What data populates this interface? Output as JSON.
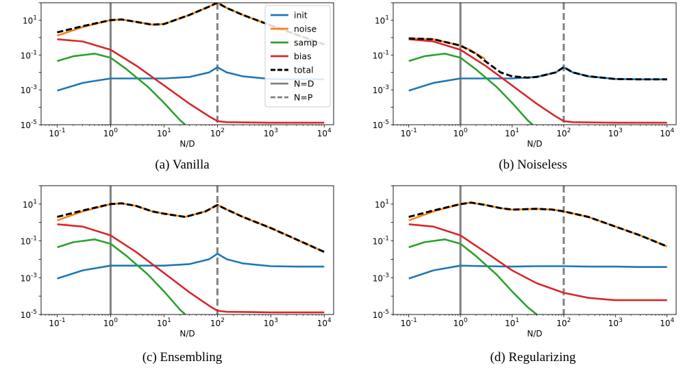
{
  "legend": {
    "items": [
      {
        "label": "init",
        "color": "#1f77b4",
        "dash": "solid"
      },
      {
        "label": "noise",
        "color": "#ff7f0e",
        "dash": "solid"
      },
      {
        "label": "samp",
        "color": "#2ca02c",
        "dash": "solid"
      },
      {
        "label": "bias",
        "color": "#d62728",
        "dash": "solid"
      },
      {
        "label": "total",
        "color": "#000000",
        "dash": "dashed"
      },
      {
        "label": "N=D",
        "color": "#808080",
        "dash": "solid"
      },
      {
        "label": "N=P",
        "color": "#808080",
        "dash": "dashed"
      }
    ]
  },
  "chart_data": [
    {
      "type": "line",
      "caption": "(a) Vanilla",
      "xlabel": "N/D",
      "xscale": "log",
      "yscale": "log",
      "xlim": [
        0.05,
        15000
      ],
      "ylim": [
        1e-05,
        100
      ],
      "xticks": [
        "10^-1",
        "10^0",
        "10^1",
        "10^2",
        "10^3",
        "10^4"
      ],
      "yticks": [
        "10^1",
        "10^-1",
        "10^-3",
        "10^-5"
      ],
      "legend_position": "upper-right",
      "vlines": [
        {
          "x": 1,
          "style": "solid"
        },
        {
          "x": 100,
          "style": "dashed"
        }
      ],
      "series": [
        {
          "name": "init",
          "x": [
            0.1,
            0.3,
            1,
            3,
            10,
            30,
            70,
            100,
            150,
            300,
            1000,
            3000,
            10000
          ],
          "y": [
            0.0009,
            0.0025,
            0.0045,
            0.0045,
            0.0045,
            0.0055,
            0.01,
            0.02,
            0.01,
            0.006,
            0.0042,
            0.004,
            0.004
          ]
        },
        {
          "name": "noise",
          "x": [
            0.1,
            0.3,
            1,
            1.6,
            3,
            6,
            10,
            30,
            70,
            100,
            150,
            300,
            1000,
            3000,
            10000
          ],
          "y": [
            1.3,
            4,
            10,
            11,
            8,
            5.5,
            6,
            20,
            60,
            100,
            50,
            20,
            5,
            1.5,
            0.4
          ]
        },
        {
          "name": "samp",
          "x": [
            0.1,
            0.2,
            0.5,
            1,
            2,
            5,
            10,
            20,
            25
          ],
          "y": [
            0.045,
            0.085,
            0.12,
            0.07,
            0.015,
            0.0015,
            0.00018,
            1.8e-05,
            1e-05
          ]
        },
        {
          "name": "bias",
          "x": [
            0.1,
            0.3,
            1,
            3,
            10,
            30,
            70,
            100,
            150,
            1000,
            10000
          ],
          "y": [
            0.8,
            0.6,
            0.2,
            0.025,
            0.0018,
            0.00016,
            3e-05,
            1.6e-05,
            1.4e-05,
            1.3e-05,
            1.3e-05
          ]
        },
        {
          "name": "total",
          "x": [
            0.1,
            0.3,
            1,
            1.6,
            3,
            6,
            10,
            30,
            70,
            100,
            150,
            300,
            1000,
            3000,
            10000
          ],
          "y": [
            2,
            4.5,
            10,
            11,
            8,
            5.5,
            6,
            20,
            60,
            100,
            50,
            20,
            5,
            1.5,
            0.4
          ]
        }
      ]
    },
    {
      "type": "line",
      "caption": "(b) Noiseless",
      "xlabel": "N/D",
      "xscale": "log",
      "yscale": "log",
      "xlim": [
        0.05,
        15000
      ],
      "ylim": [
        1e-05,
        100
      ],
      "xticks": [
        "10^-1",
        "10^0",
        "10^1",
        "10^2",
        "10^3",
        "10^4"
      ],
      "yticks": [
        "10^1",
        "10^-1",
        "10^-3",
        "10^-5"
      ],
      "vlines": [
        {
          "x": 1,
          "style": "solid"
        },
        {
          "x": 100,
          "style": "dashed"
        }
      ],
      "series": [
        {
          "name": "init",
          "x": [
            0.1,
            0.3,
            1,
            3,
            10,
            30,
            70,
            100,
            150,
            300,
            1000,
            3000,
            10000
          ],
          "y": [
            0.0009,
            0.0025,
            0.0045,
            0.0045,
            0.0045,
            0.0055,
            0.01,
            0.02,
            0.01,
            0.006,
            0.0042,
            0.004,
            0.004
          ]
        },
        {
          "name": "noise",
          "x": [
            0.1,
            0.3,
            1,
            1.5,
            3
          ],
          "y": [
            0.9,
            0.8,
            0.35,
            0.2,
            0.06
          ]
        },
        {
          "name": "samp",
          "x": [
            0.1,
            0.2,
            0.5,
            1,
            2,
            5,
            10,
            20,
            25
          ],
          "y": [
            0.045,
            0.085,
            0.12,
            0.07,
            0.015,
            0.0015,
            0.00018,
            1.8e-05,
            1e-05
          ]
        },
        {
          "name": "bias",
          "x": [
            0.1,
            0.3,
            1,
            3,
            10,
            30,
            70,
            100,
            150,
            1000,
            10000
          ],
          "y": [
            0.8,
            0.6,
            0.2,
            0.025,
            0.0018,
            0.00016,
            3e-05,
            1.6e-05,
            1.4e-05,
            1.3e-05,
            1.3e-05
          ]
        },
        {
          "name": "total",
          "x": [
            0.1,
            0.3,
            1,
            2,
            3,
            6,
            10,
            20,
            30,
            70,
            100,
            150,
            300,
            1000,
            3000,
            10000
          ],
          "y": [
            0.9,
            0.8,
            0.35,
            0.12,
            0.045,
            0.01,
            0.006,
            0.005,
            0.0055,
            0.01,
            0.02,
            0.01,
            0.006,
            0.0042,
            0.004,
            0.004
          ]
        }
      ]
    },
    {
      "type": "line",
      "caption": "(c) Ensembling",
      "xlabel": "N/D",
      "xscale": "log",
      "yscale": "log",
      "xlim": [
        0.05,
        15000
      ],
      "ylim": [
        1e-05,
        100
      ],
      "xticks": [
        "10^-1",
        "10^0",
        "10^1",
        "10^2",
        "10^3",
        "10^4"
      ],
      "yticks": [
        "10^1",
        "10^-1",
        "10^-3",
        "10^-5"
      ],
      "vlines": [
        {
          "x": 1,
          "style": "solid"
        },
        {
          "x": 100,
          "style": "dashed"
        }
      ],
      "series": [
        {
          "name": "init",
          "x": [
            0.1,
            0.3,
            1,
            3,
            10,
            30,
            70,
            100,
            150,
            300,
            1000,
            3000,
            10000
          ],
          "y": [
            0.0009,
            0.0025,
            0.0045,
            0.0045,
            0.0045,
            0.0055,
            0.01,
            0.02,
            0.01,
            0.006,
            0.0042,
            0.004,
            0.004
          ]
        },
        {
          "name": "noise",
          "x": [
            0.1,
            0.3,
            1,
            1.6,
            3,
            6,
            10,
            25,
            60,
            100,
            150,
            300,
            1000,
            3000,
            10000
          ],
          "y": [
            1.3,
            4,
            10,
            11,
            8,
            4,
            3,
            2,
            4,
            9,
            5,
            2,
            0.5,
            0.12,
            0.025
          ]
        },
        {
          "name": "samp",
          "x": [
            0.1,
            0.2,
            0.5,
            1,
            2,
            5,
            10,
            20,
            25
          ],
          "y": [
            0.045,
            0.085,
            0.12,
            0.07,
            0.015,
            0.0015,
            0.00018,
            1.8e-05,
            1e-05
          ]
        },
        {
          "name": "bias",
          "x": [
            0.1,
            0.3,
            1,
            3,
            10,
            30,
            70,
            100,
            150,
            1000,
            10000
          ],
          "y": [
            0.8,
            0.6,
            0.2,
            0.025,
            0.0018,
            0.00016,
            3e-05,
            1.6e-05,
            1.4e-05,
            1.3e-05,
            1.3e-05
          ]
        },
        {
          "name": "total",
          "x": [
            0.1,
            0.3,
            1,
            1.6,
            3,
            6,
            10,
            25,
            60,
            100,
            150,
            300,
            1000,
            3000,
            10000
          ],
          "y": [
            2,
            4.5,
            10,
            11,
            8,
            4,
            3,
            2,
            4,
            9,
            5,
            2,
            0.5,
            0.12,
            0.025
          ]
        }
      ]
    },
    {
      "type": "line",
      "caption": "(d) Regularizing",
      "xlabel": "N/D",
      "xscale": "log",
      "yscale": "log",
      "xlim": [
        0.05,
        15000
      ],
      "ylim": [
        1e-05,
        100
      ],
      "xticks": [
        "10^-1",
        "10^0",
        "10^1",
        "10^2",
        "10^3",
        "10^4"
      ],
      "yticks": [
        "10^1",
        "10^-1",
        "10^-3",
        "10^-5"
      ],
      "vlines": [
        {
          "x": 1,
          "style": "solid"
        },
        {
          "x": 100,
          "style": "dashed"
        }
      ],
      "series": [
        {
          "name": "init",
          "x": [
            0.1,
            0.3,
            1,
            3,
            10,
            30,
            100,
            300,
            1000,
            3000,
            10000
          ],
          "y": [
            0.0009,
            0.0025,
            0.0045,
            0.0042,
            0.004,
            0.0042,
            0.0042,
            0.004,
            0.004,
            0.0038,
            0.0038
          ]
        },
        {
          "name": "noise",
          "x": [
            0.1,
            0.3,
            1,
            1.6,
            3,
            6,
            10,
            30,
            60,
            100,
            300,
            1000,
            3000,
            10000
          ],
          "y": [
            1.3,
            4,
            10,
            12,
            9,
            6,
            5,
            5.5,
            5,
            4,
            2,
            0.6,
            0.2,
            0.05
          ]
        },
        {
          "name": "samp",
          "x": [
            0.1,
            0.2,
            0.5,
            1,
            2,
            5,
            10,
            20,
            30
          ],
          "y": [
            0.045,
            0.085,
            0.12,
            0.07,
            0.015,
            0.0015,
            0.00018,
            2.5e-05,
            1e-05
          ]
        },
        {
          "name": "bias",
          "x": [
            0.1,
            0.3,
            1,
            3,
            10,
            30,
            100,
            300,
            1000,
            10000
          ],
          "y": [
            0.8,
            0.6,
            0.2,
            0.025,
            0.0025,
            0.0005,
            0.00015,
            8e-05,
            6e-05,
            6e-05
          ]
        },
        {
          "name": "total",
          "x": [
            0.1,
            0.3,
            1,
            1.6,
            3,
            6,
            10,
            30,
            60,
            100,
            300,
            1000,
            3000,
            10000
          ],
          "y": [
            2,
            4.5,
            10,
            12,
            9,
            6,
            5,
            5.5,
            5,
            4,
            2,
            0.6,
            0.2,
            0.05
          ]
        }
      ]
    }
  ]
}
